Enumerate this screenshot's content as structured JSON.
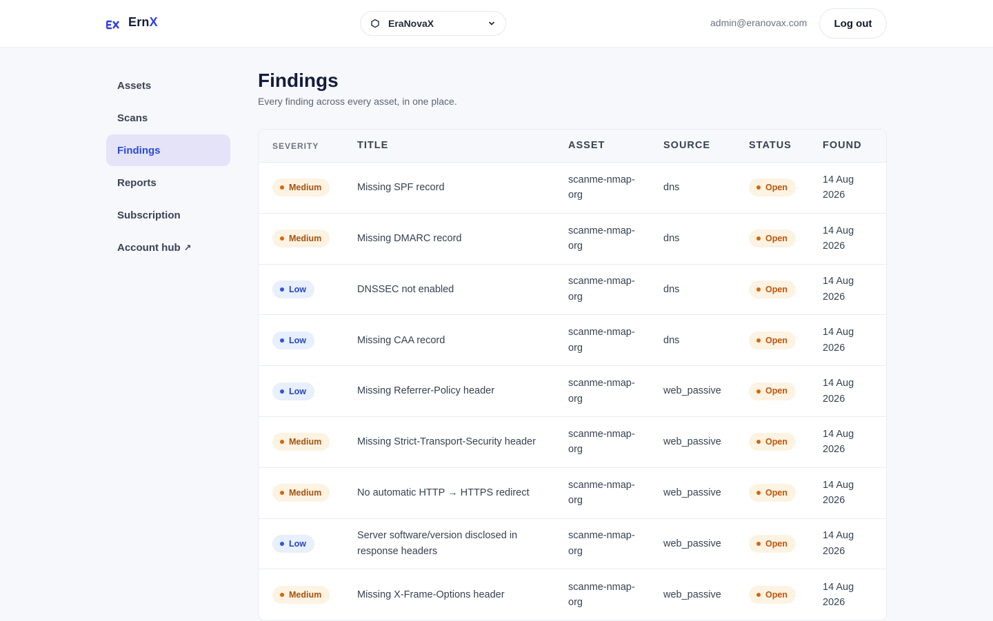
{
  "app": {
    "brand_prefix": "Ern",
    "brand_suffix": "X",
    "org_selector": "EraNovaX",
    "user_email": "admin@eranovax.com",
    "logout_label": "Log out"
  },
  "sidebar": {
    "items": [
      {
        "label": "Assets"
      },
      {
        "label": "Scans"
      },
      {
        "label": "Findings"
      },
      {
        "label": "Reports"
      },
      {
        "label": "Subscription"
      },
      {
        "label": "Account hub",
        "suffix": "↗"
      }
    ],
    "active": "Findings"
  },
  "page": {
    "title": "Findings",
    "subtitle": "Every finding across every asset, in one place."
  },
  "table": {
    "columns": [
      "SEVERITY",
      "TITLE",
      "ASSET",
      "SOURCE",
      "STATUS",
      "FOUND"
    ],
    "rows": [
      {
        "severity": "Medium",
        "title": "Missing SPF record",
        "asset": "scanme-nmap-org",
        "source": "dns",
        "status": "Open",
        "found": "14 Aug 2026"
      },
      {
        "severity": "Medium",
        "title": "Missing DMARC record",
        "asset": "scanme-nmap-org",
        "source": "dns",
        "status": "Open",
        "found": "14 Aug 2026"
      },
      {
        "severity": "Low",
        "title": "DNSSEC not enabled",
        "asset": "scanme-nmap-org",
        "source": "dns",
        "status": "Open",
        "found": "14 Aug 2026"
      },
      {
        "severity": "Low",
        "title": "Missing CAA record",
        "asset": "scanme-nmap-org",
        "source": "dns",
        "status": "Open",
        "found": "14 Aug 2026"
      },
      {
        "severity": "Low",
        "title": "Missing Referrer-Policy header",
        "asset": "scanme-nmap-org",
        "source": "web_passive",
        "status": "Open",
        "found": "14 Aug 2026"
      },
      {
        "severity": "Medium",
        "title": "Missing Strict-Transport-Security header",
        "asset": "scanme-nmap-org",
        "source": "web_passive",
        "status": "Open",
        "found": "14 Aug 2026"
      },
      {
        "severity": "Medium",
        "title": "No automatic HTTP → HTTPS redirect",
        "asset": "scanme-nmap-org",
        "source": "web_passive",
        "status": "Open",
        "found": "14 Aug 2026"
      },
      {
        "severity": "Low",
        "title": "Server software/version disclosed in response headers",
        "asset": "scanme-nmap-org",
        "source": "web_passive",
        "status": "Open",
        "found": "14 Aug 2026"
      },
      {
        "severity": "Medium",
        "title": "Missing X-Frame-Options header",
        "asset": "scanme-nmap-org",
        "source": "web_passive",
        "status": "Open",
        "found": "14 Aug 2026"
      }
    ]
  },
  "colors": {
    "brand": "#2f3fe0",
    "medium": "#d9640a",
    "low": "#2f55e0",
    "active_nav_bg": "#e4e3f8"
  },
  "icons": {
    "logo": "ex-logo-icon",
    "org": "hexagon-icon",
    "dropdown": "chevron-down-icon",
    "external": "external-arrow-icon"
  }
}
